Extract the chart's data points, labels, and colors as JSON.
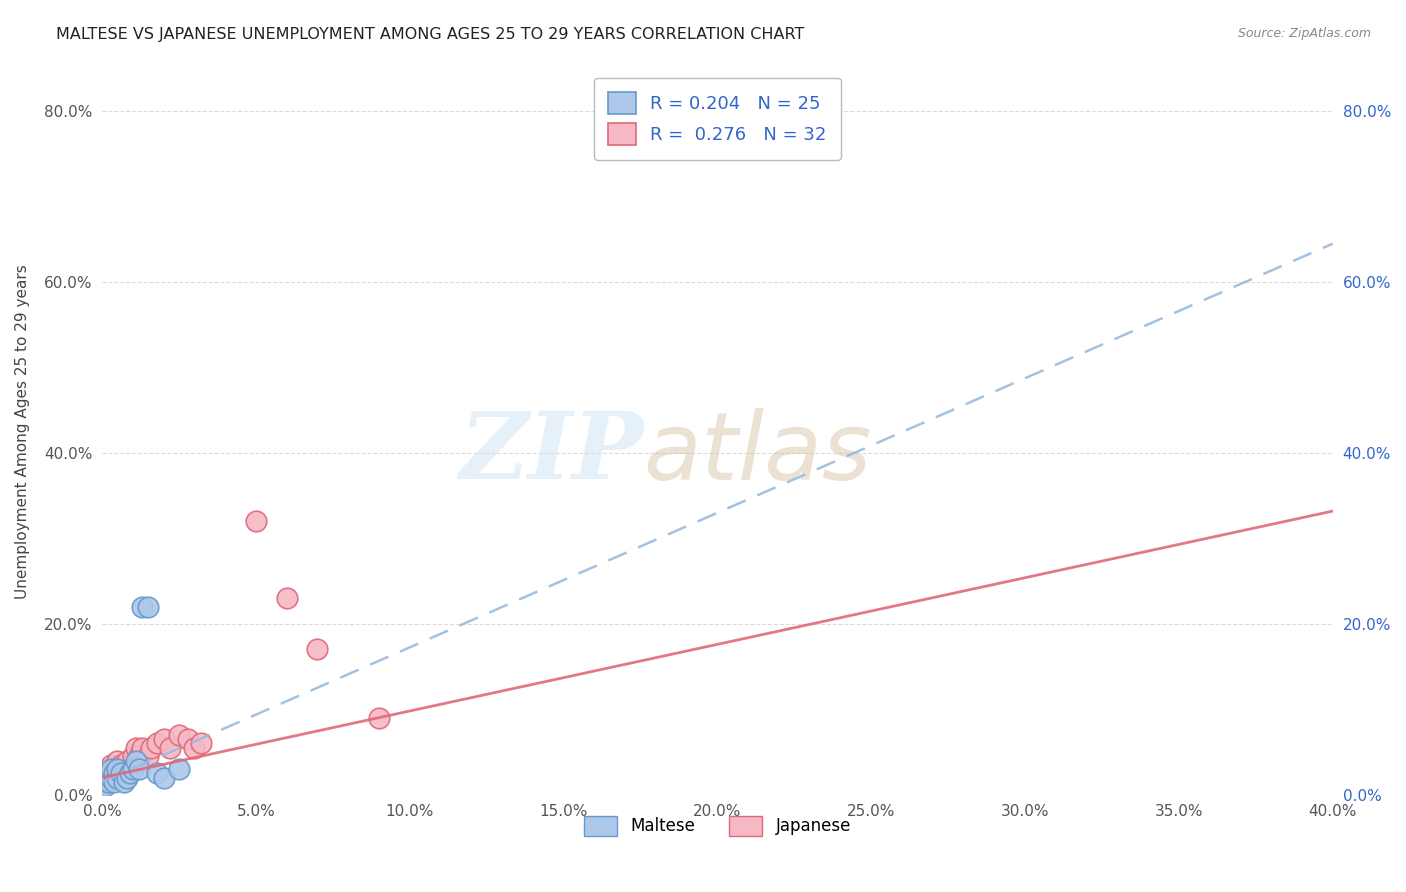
{
  "title": "MALTESE VS JAPANESE UNEMPLOYMENT AMONG AGES 25 TO 29 YEARS CORRELATION CHART",
  "source": "Source: ZipAtlas.com",
  "ylabel": "Unemployment Among Ages 25 to 29 years",
  "xlim": [
    0.0,
    0.4
  ],
  "ylim": [
    0.0,
    0.85
  ],
  "xtick_labels": [
    "0.0%",
    "5.0%",
    "10.0%",
    "15.0%",
    "20.0%",
    "25.0%",
    "30.0%",
    "35.0%",
    "40.0%"
  ],
  "xtick_vals": [
    0.0,
    0.05,
    0.1,
    0.15,
    0.2,
    0.25,
    0.3,
    0.35,
    0.4
  ],
  "ytick_labels": [
    "0.0%",
    "20.0%",
    "40.0%",
    "60.0%",
    "80.0%"
  ],
  "ytick_vals": [
    0.0,
    0.2,
    0.4,
    0.6,
    0.8
  ],
  "maltese_color": "#adc8e8",
  "maltese_edge_color": "#6699cc",
  "japanese_color": "#f5b8c4",
  "japanese_edge_color": "#e06878",
  "maltese_R": 0.204,
  "maltese_N": 25,
  "japanese_R": 0.276,
  "japanese_N": 32,
  "legend_R_color": "#3366cc",
  "legend_N_color": "#33aa33",
  "maltese_trend_color": "#99bbdd",
  "japanese_trend_color": "#e06878",
  "maltese_x": [
    0.0,
    0.0,
    0.0,
    0.001,
    0.001,
    0.002,
    0.002,
    0.003,
    0.003,
    0.004,
    0.004,
    0.005,
    0.005,
    0.006,
    0.007,
    0.008,
    0.009,
    0.01,
    0.011,
    0.012,
    0.013,
    0.015,
    0.018,
    0.02,
    0.025
  ],
  "maltese_y": [
    0.02,
    0.01,
    0.015,
    0.01,
    0.02,
    0.015,
    0.025,
    0.02,
    0.03,
    0.025,
    0.015,
    0.02,
    0.03,
    0.025,
    0.015,
    0.02,
    0.025,
    0.03,
    0.04,
    0.03,
    0.22,
    0.22,
    0.025,
    0.02,
    0.03
  ],
  "japanese_x": [
    0.0,
    0.0,
    0.001,
    0.002,
    0.002,
    0.003,
    0.003,
    0.004,
    0.004,
    0.005,
    0.005,
    0.006,
    0.007,
    0.008,
    0.009,
    0.01,
    0.011,
    0.012,
    0.013,
    0.015,
    0.016,
    0.018,
    0.02,
    0.022,
    0.025,
    0.028,
    0.03,
    0.032,
    0.05,
    0.06,
    0.07,
    0.09
  ],
  "japanese_y": [
    0.015,
    0.02,
    0.02,
    0.025,
    0.03,
    0.02,
    0.035,
    0.03,
    0.02,
    0.025,
    0.04,
    0.035,
    0.025,
    0.04,
    0.03,
    0.045,
    0.055,
    0.045,
    0.055,
    0.045,
    0.055,
    0.06,
    0.065,
    0.055,
    0.07,
    0.065,
    0.055,
    0.06,
    0.32,
    0.23,
    0.17,
    0.09
  ],
  "maltese_trend_slope": 1.575,
  "maltese_trend_intercept": 0.015,
  "japanese_trend_slope": 0.78,
  "japanese_trend_intercept": 0.02,
  "bg_color": "#ffffff",
  "grid_color": "#cccccc",
  "scatter_size": 220
}
